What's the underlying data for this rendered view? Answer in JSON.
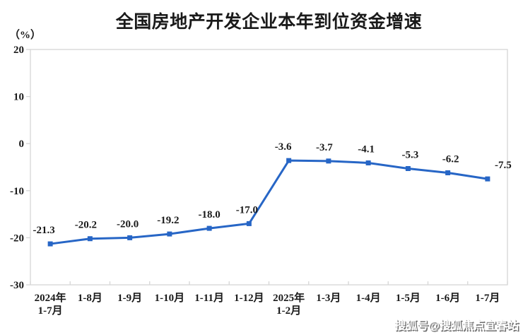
{
  "watermark": "搜狐号@搜狐焦点宜春站",
  "chart_data": {
    "type": "line",
    "title": "全国房地产开发企业本年到位资金增速",
    "unit_label": "（%）",
    "categories": [
      "2024年\n1-7月",
      "1-8月",
      "1-9月",
      "1-10月",
      "1-11月",
      "1-12月",
      "2025年\n1-2月",
      "1-3月",
      "1-4月",
      "1-5月",
      "1-6月",
      "1-7月"
    ],
    "values": [
      -21.3,
      -20.2,
      -20.0,
      -19.2,
      -18.0,
      -17.0,
      -3.6,
      -3.7,
      -4.1,
      -5.3,
      -6.2,
      -7.5
    ],
    "data_labels": [
      "-21.3",
      "-20.2",
      "-20.0",
      "-19.2",
      "-18.0",
      "-17.0",
      "-3.6",
      "-3.7",
      "-4.1",
      "-5.3",
      "-6.2",
      "-7.5"
    ],
    "xlabel": "",
    "ylabel": "",
    "ylim": [
      -30,
      20
    ],
    "yticks": [
      20,
      10,
      0,
      -10,
      -20,
      -30
    ],
    "grid": false,
    "legend": "none",
    "line_color": "#2766C6",
    "axis_color": "#D6D6D6",
    "marker": "square"
  }
}
